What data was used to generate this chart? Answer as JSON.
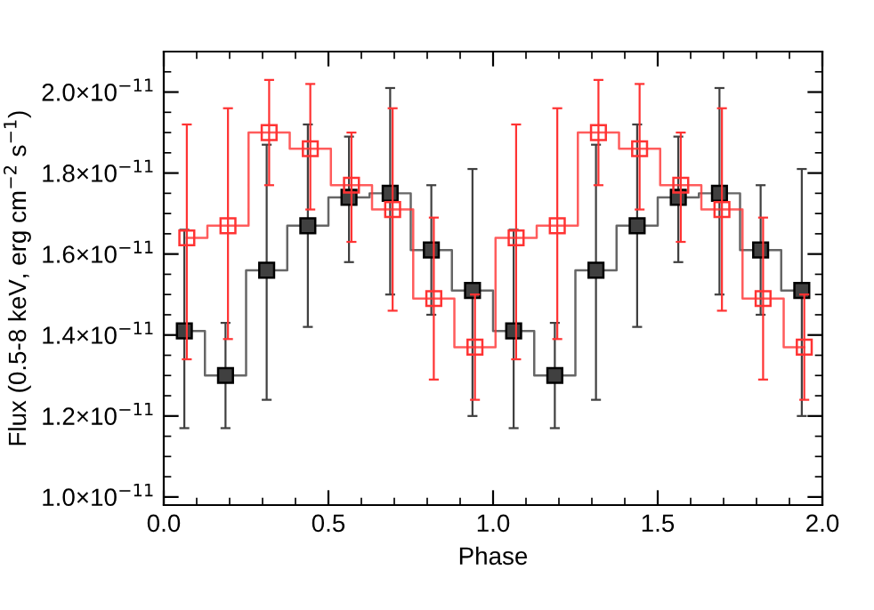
{
  "chart_data": {
    "type": "step",
    "xlabel": "Phase",
    "ylabel": "Flux (0.5-8 keV, erg cm$^{−2}$ s$^{−1}$)",
    "xlim": [
      0,
      2
    ],
    "xticks": [
      {
        "value": 0,
        "label": "0.0"
      },
      {
        "value": 0.5,
        "label": "0.5"
      },
      {
        "value": 1,
        "label": "1.0"
      },
      {
        "value": 1.5,
        "label": "1.5"
      },
      {
        "value": 2,
        "label": "2.0"
      }
    ],
    "ylim": [
      9.8e-12,
      2.1e-11
    ],
    "yticks": [
      {
        "value": 1e-11,
        "label": "1.0×10$^{−11}$"
      },
      {
        "value": 1.2e-11,
        "label": "1.2×10$^{−11}$"
      },
      {
        "value": 1.4e-11,
        "label": "1.4×10$^{−11}$"
      },
      {
        "value": 1.6e-11,
        "label": "1.6×10$^{−11}$"
      },
      {
        "value": 1.8e-11,
        "label": "1.8×10$^{−11}$"
      },
      {
        "value": 2e-11,
        "label": "2.0×10$^{−11}$"
      }
    ],
    "marker": "square",
    "grid": false,
    "series": [
      {
        "color": "#404040",
        "x": [
          0.0625,
          0.1875,
          0.3125,
          0.4375,
          0.5625,
          0.6875,
          0.8125,
          0.9375,
          1.0625,
          1.1875,
          1.3125,
          1.4375,
          1.5625,
          1.6875,
          1.8125,
          1.9375
        ],
        "values": [
          1.41e-11,
          1.3e-11,
          1.56e-11,
          1.67e-11,
          1.74e-11,
          1.75e-11,
          1.61e-11,
          1.51e-11,
          1.41e-11,
          1.3e-11,
          1.56e-11,
          1.67e-11,
          1.74e-11,
          1.75e-11,
          1.61e-11,
          1.51e-11
        ],
        "errors": [
          [
            1.17e-11,
            1.66e-11
          ],
          [
            1.17e-11,
            1.43e-11
          ],
          [
            1.24e-11,
            1.87e-11
          ],
          [
            1.42e-11,
            1.92e-11
          ],
          [
            1.58e-11,
            1.89e-11
          ],
          [
            1.5e-11,
            2.01e-11
          ],
          [
            1.45e-11,
            1.77e-11
          ],
          [
            1.2e-11,
            1.81e-11
          ],
          [
            1.17e-11,
            1.66e-11
          ],
          [
            1.17e-11,
            1.43e-11
          ],
          [
            1.24e-11,
            1.87e-11
          ],
          [
            1.42e-11,
            1.92e-11
          ],
          [
            1.58e-11,
            1.89e-11
          ],
          [
            1.5e-11,
            2.01e-11
          ],
          [
            1.45e-11,
            1.77e-11
          ],
          [
            1.2e-11,
            1.81e-11
          ]
        ]
      },
      {
        "color": "#ff3333",
        "x": [
          0.07,
          0.195,
          0.32,
          0.445,
          0.57,
          0.695,
          0.82,
          0.945,
          1.07,
          1.195,
          1.32,
          1.445,
          1.57,
          1.695,
          1.82,
          1.945
        ],
        "values": [
          1.64e-11,
          1.67e-11,
          1.9e-11,
          1.86e-11,
          1.77e-11,
          1.71e-11,
          1.49e-11,
          1.37e-11,
          1.64e-11,
          1.67e-11,
          1.9e-11,
          1.86e-11,
          1.77e-11,
          1.71e-11,
          1.49e-11,
          1.37e-11
        ],
        "errors": [
          [
            1.34e-11,
            1.92e-11
          ],
          [
            1.39e-11,
            1.96e-11
          ],
          [
            1.77e-11,
            2.03e-11
          ],
          [
            1.71e-11,
            2.02e-11
          ],
          [
            1.63e-11,
            1.9e-11
          ],
          [
            1.46e-11,
            1.96e-11
          ],
          [
            1.29e-11,
            1.69e-11
          ],
          [
            1.24e-11,
            1.5e-11
          ],
          [
            1.34e-11,
            1.92e-11
          ],
          [
            1.39e-11,
            1.96e-11
          ],
          [
            1.77e-11,
            2.03e-11
          ],
          [
            1.71e-11,
            2.02e-11
          ],
          [
            1.63e-11,
            1.9e-11
          ],
          [
            1.46e-11,
            1.96e-11
          ],
          [
            1.29e-11,
            1.69e-11
          ],
          [
            1.24e-11,
            1.5e-11
          ]
        ]
      }
    ]
  }
}
